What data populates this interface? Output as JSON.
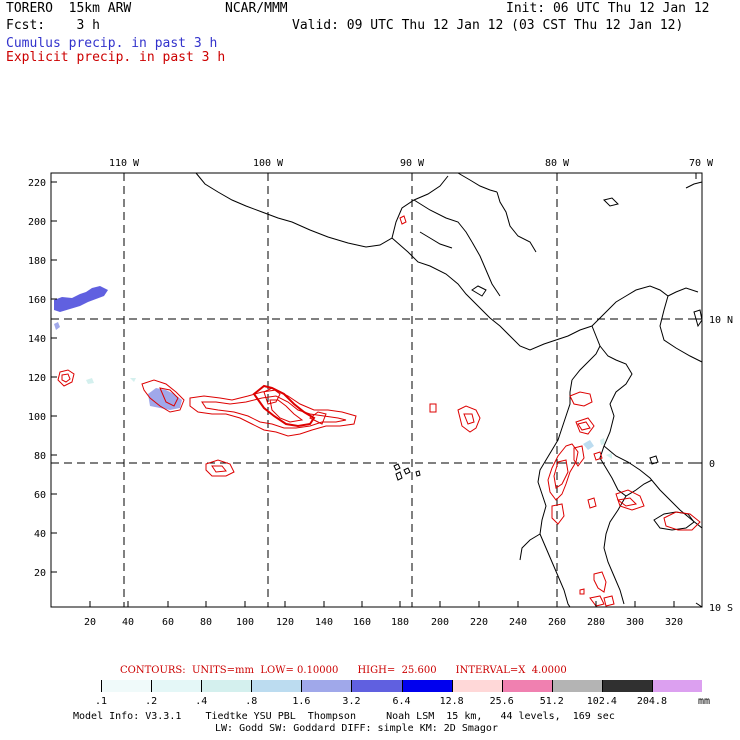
{
  "header": {
    "model": "TORERO  15km ARW",
    "org": "NCAR/MMM",
    "init": "Init: 06 UTC Thu 12 Jan 12",
    "fcst": "Fcst:    3 h",
    "valid": "Valid: 09 UTC Thu 12 Jan 12 (03 CST Thu 12 Jan 12)",
    "cumulus": "Cumulus precip. in past 3 h",
    "explicit": "Explicit precip. in past 3 h",
    "cumulus_color": "#3333cc",
    "explicit_color": "#cc0000"
  },
  "map": {
    "lon_labels": [
      "110 W",
      "100 W",
      "90 W",
      "80 W",
      "70 W"
    ],
    "lat_labels": [
      "10 N",
      "0",
      "10 S"
    ],
    "x_ticks": [
      "20",
      "40",
      "60",
      "80",
      "100",
      "120",
      "140",
      "160",
      "180",
      "200",
      "220",
      "240",
      "260",
      "280",
      "300",
      "320"
    ],
    "y_ticks": [
      "20",
      "40",
      "60",
      "80",
      "100",
      "120",
      "140",
      "160",
      "180",
      "200",
      "220"
    ]
  },
  "contour_info": {
    "label": "CONTOURS:  UNITS=mm  LOW= 0.10000      HIGH=  25.600      INTERVAL=X  4.0000",
    "color": "#cc0000"
  },
  "colorbar": {
    "colors": [
      "#ffffff",
      "#f0fafa",
      "#e4f7f7",
      "#d4f0ee",
      "#bcdcf0",
      "#a0a8ea",
      "#6060e0",
      "#0000ee",
      "#ffd8d8",
      "#f080b0",
      "#b4b4b4",
      "#303030",
      "#dca0f0"
    ],
    "labels": [
      ".1",
      ".2",
      ".4",
      ".8",
      "1.6",
      "3.2",
      "6.4",
      "12.8",
      "25.6",
      "51.2",
      "102.4",
      "204.8"
    ],
    "unit": "mm"
  },
  "footer": {
    "line1": "Model Info: V3.3.1    Tiedtke YSU PBL  Thompson     Noah LSM  15 km,   44 levels,  169 sec",
    "line2": "LW: Godd SW: Goddard DIFF: simple KM: 2D Smagor"
  }
}
